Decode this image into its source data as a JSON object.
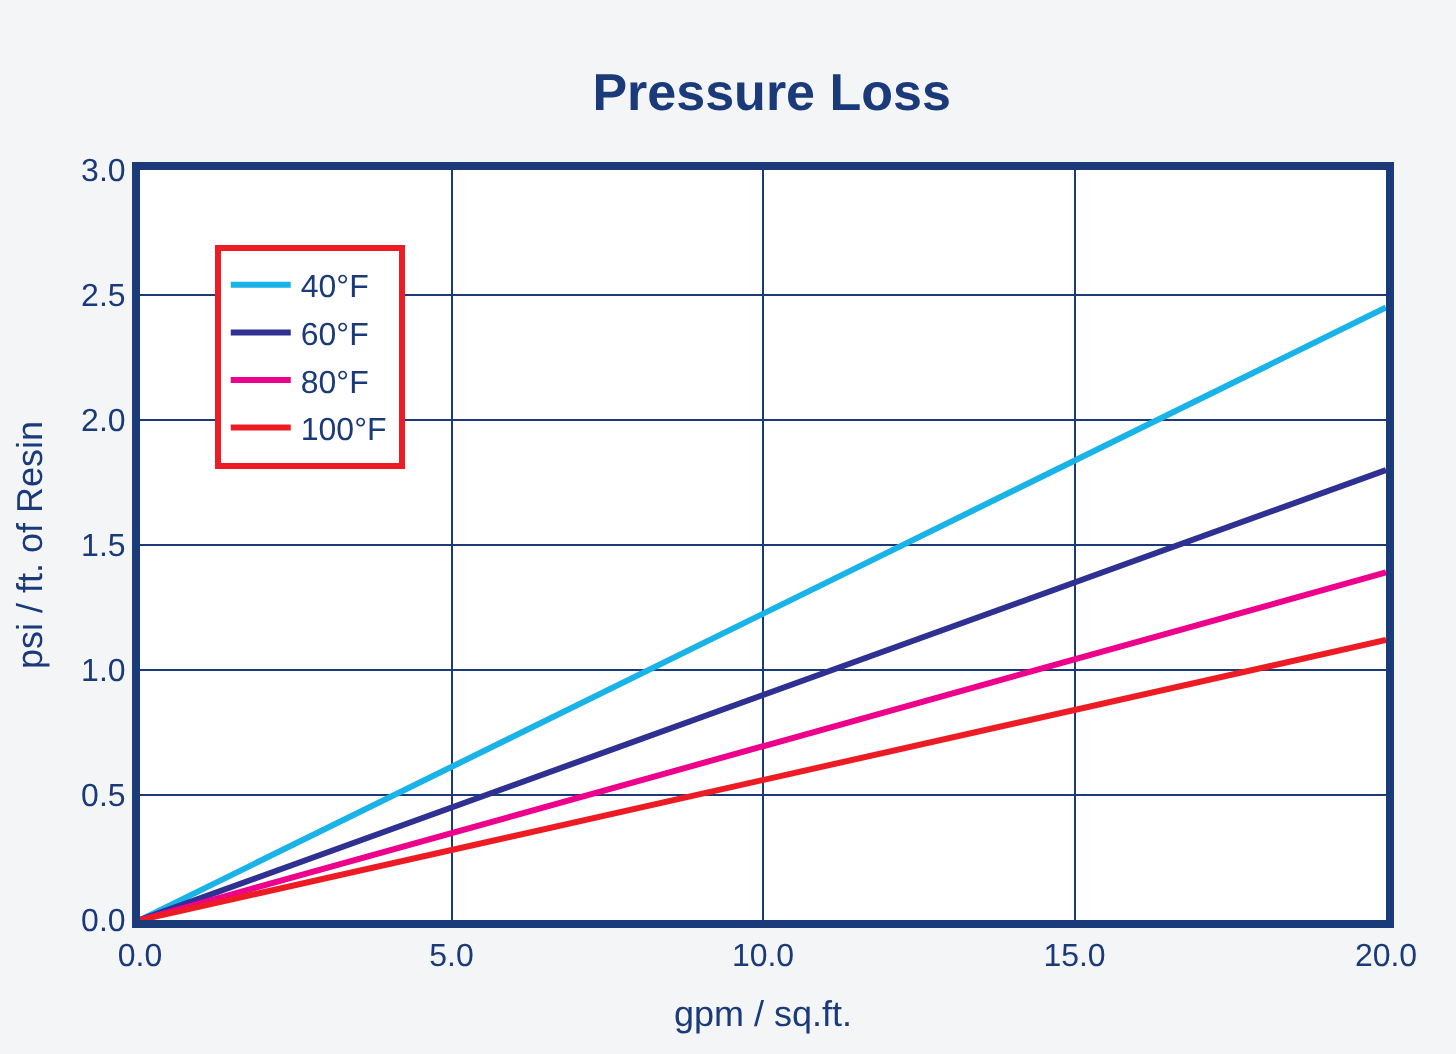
{
  "chart_data": {
    "type": "line",
    "title": "Pressure Loss",
    "xlabel": "gpm / sq.ft.",
    "ylabel": "psi / ft. of Resin",
    "x": [
      0,
      20
    ],
    "series": [
      {
        "name": "40°F",
        "color": "#19b3e8",
        "values": [
          0,
          2.45
        ]
      },
      {
        "name": "60°F",
        "color": "#2e3192",
        "values": [
          0,
          1.8
        ]
      },
      {
        "name": "80°F",
        "color": "#ec008c",
        "values": [
          0,
          1.39
        ]
      },
      {
        "name": "100°F",
        "color": "#ed1c24",
        "values": [
          0,
          1.12
        ]
      }
    ],
    "xlim": [
      0,
      20
    ],
    "xticks": [
      {
        "value": 0,
        "label": "0.0"
      },
      {
        "value": 5,
        "label": "5.0"
      },
      {
        "value": 10,
        "label": "10.0"
      },
      {
        "value": 15,
        "label": "15.0"
      },
      {
        "value": 20,
        "label": "20.0"
      }
    ],
    "ylim": [
      0,
      3
    ],
    "yticks": [
      {
        "value": 0,
        "label": "0.0"
      },
      {
        "value": 0.5,
        "label": "0.5"
      },
      {
        "value": 1,
        "label": "1.0"
      },
      {
        "value": 1.5,
        "label": "1.5"
      },
      {
        "value": 2,
        "label": "2.0"
      },
      {
        "value": 2.5,
        "label": "2.5"
      },
      {
        "value": 3,
        "label": "3.0"
      }
    ],
    "grid": true,
    "legend": "top left",
    "marker": "none",
    "line_style": "solid"
  }
}
